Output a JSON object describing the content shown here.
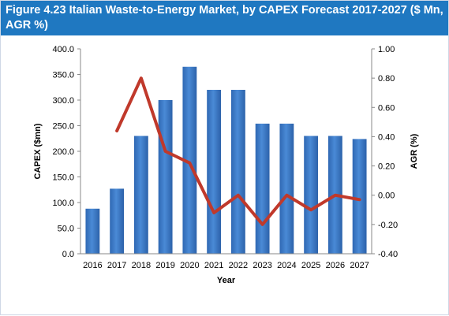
{
  "chart_data": {
    "type": "bar",
    "title": "Figure 4.23 Italian Waste-to-Energy Market, by CAPEX Forecast 2017-2027 ($ Mn, AGR %)",
    "xlabel": "Year",
    "ylabel": "CAPEX ($mn)",
    "y2label": "AGR (%)",
    "categories": [
      "2016",
      "2017",
      "2018",
      "2019",
      "2020",
      "2021",
      "2022",
      "2023",
      "2024",
      "2025",
      "2026",
      "2027"
    ],
    "ylim": [
      0,
      400
    ],
    "y_ticks": [
      "0.0",
      "50.0",
      "100.0",
      "150.0",
      "200.0",
      "250.0",
      "300.0",
      "350.0",
      "400.0"
    ],
    "y2lim": [
      -0.4,
      1.0
    ],
    "y2_ticks": [
      "-0.40",
      "-0.20",
      "0.00",
      "0.20",
      "0.40",
      "0.60",
      "0.80",
      "1.00"
    ],
    "grid": false,
    "series": [
      {
        "type": "bar",
        "axis": "left",
        "color": "#3a78c6",
        "values": [
          88,
          127,
          230,
          300,
          365,
          320,
          320,
          254,
          254,
          230,
          230,
          224
        ]
      },
      {
        "type": "line",
        "axis": "right",
        "color": "#c0392b",
        "values": [
          null,
          0.44,
          0.8,
          0.3,
          0.22,
          -0.12,
          0.0,
          -0.2,
          0.0,
          -0.1,
          0.0,
          -0.03
        ]
      }
    ]
  }
}
